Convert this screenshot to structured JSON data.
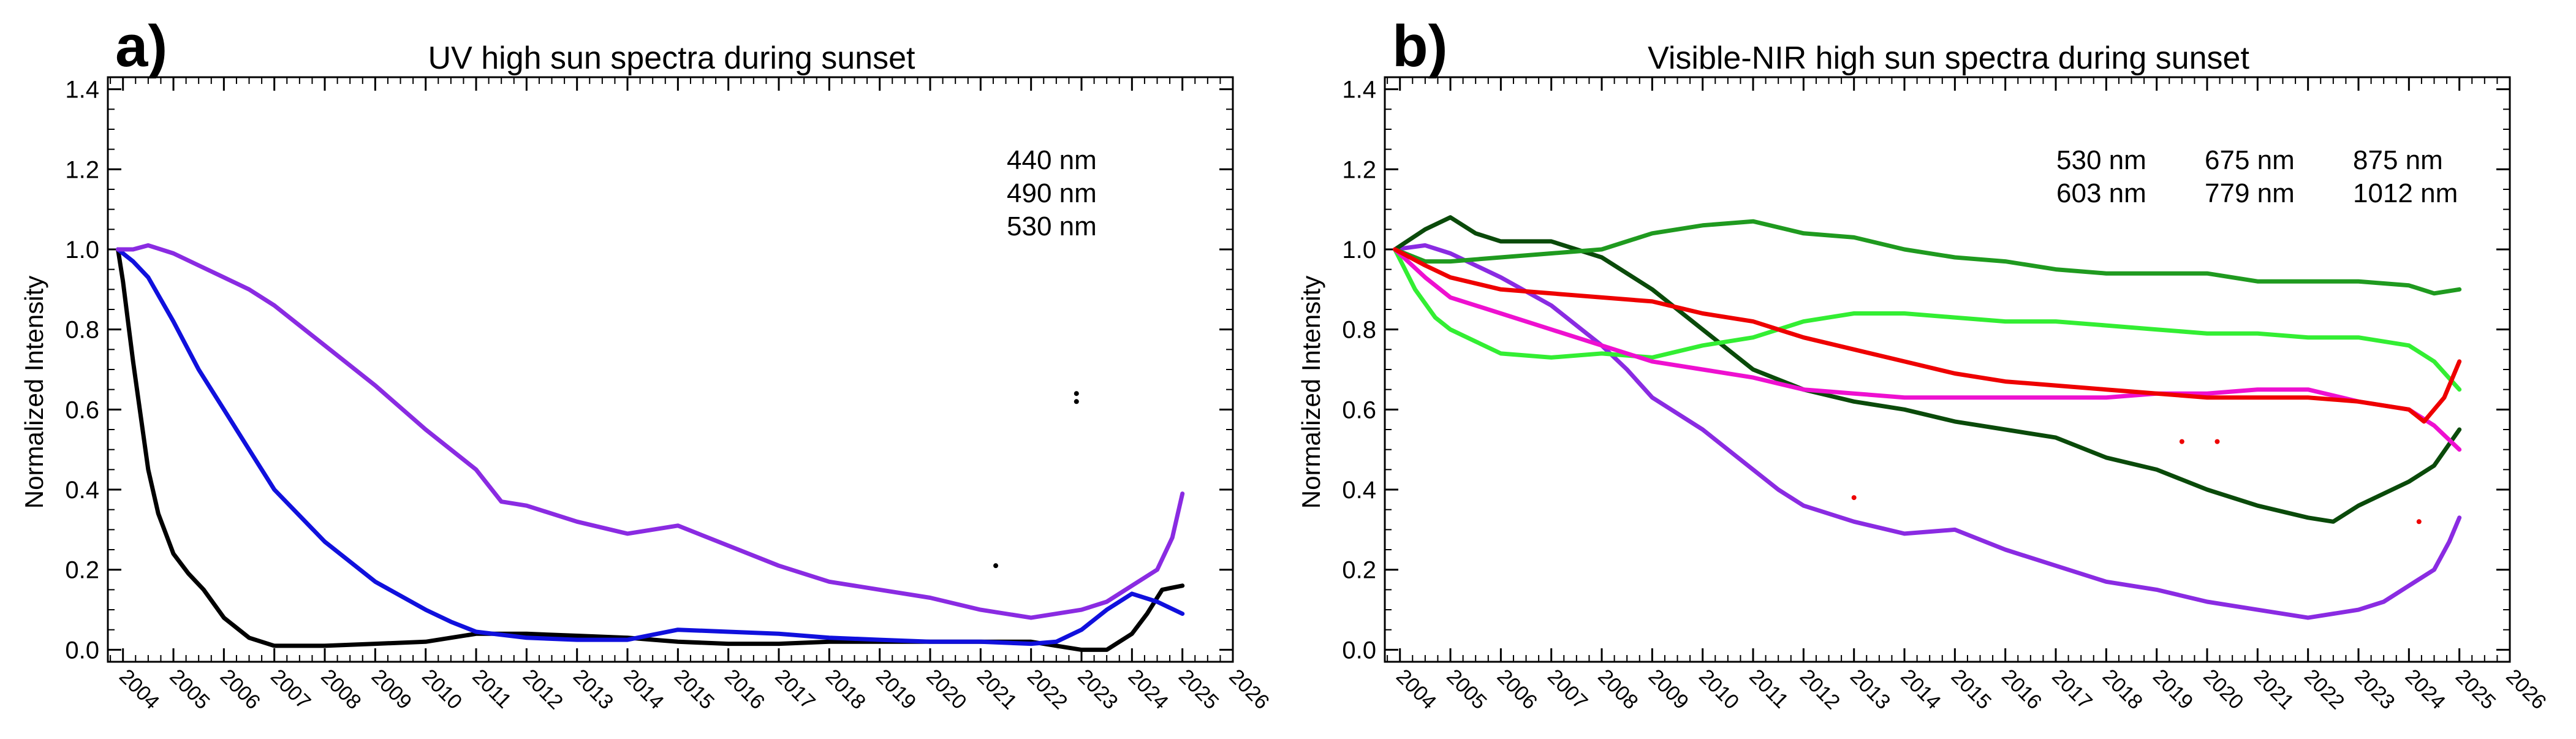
{
  "figure": {
    "background": "#ffffff"
  },
  "panels": [
    {
      "panel_label": "a)",
      "title": "UV high sun spectra during sunset",
      "ylabel": "Normalized Intensity",
      "yticks": [
        "0.0",
        "0.2",
        "0.4",
        "0.6",
        "0.8",
        "1.0",
        "1.2",
        "1.4"
      ],
      "xticks": [
        "2004",
        "2005",
        "2006",
        "2007",
        "2008",
        "2009",
        "2010",
        "2011",
        "2012",
        "2013",
        "2014",
        "2015",
        "2016",
        "2017",
        "2018",
        "2019",
        "2020",
        "2021",
        "2022",
        "2023",
        "2024",
        "2025",
        "2026"
      ],
      "legend": [
        {
          "label": "440 nm",
          "color": "#000000"
        },
        {
          "label": "490 nm",
          "color": "#1010dd"
        },
        {
          "label": "530 nm",
          "color": "#8a2be2"
        }
      ]
    },
    {
      "panel_label": "b)",
      "title": "Visible-NIR high sun spectra during sunset",
      "ylabel": "Normalized Intensity",
      "yticks": [
        "0.0",
        "0.2",
        "0.4",
        "0.6",
        "0.8",
        "1.0",
        "1.2",
        "1.4"
      ],
      "xticks": [
        "2004",
        "2005",
        "2006",
        "2007",
        "2008",
        "2009",
        "2010",
        "2011",
        "2012",
        "2013",
        "2014",
        "2015",
        "2016",
        "2017",
        "2018",
        "2019",
        "2020",
        "2021",
        "2022",
        "2023",
        "2024",
        "2025",
        "2026"
      ],
      "legend": [
        {
          "label": "530 nm",
          "color": "#8a2be2"
        },
        {
          "label": "603 nm",
          "color": "#0a4a0a"
        },
        {
          "label": "675 nm",
          "color": "#1f9a1f"
        },
        {
          "label": "779 nm",
          "color": "#33ee33"
        },
        {
          "label": "875 nm",
          "color": "#ee10d0"
        },
        {
          "label": "1012 nm",
          "color": "#ee0000"
        }
      ]
    }
  ],
  "chart_data": [
    {
      "type": "line",
      "title": "UV high sun spectra during sunset",
      "xlabel": "",
      "ylabel": "Normalized Intensity",
      "xlim": [
        2003.7,
        2026
      ],
      "ylim": [
        -0.03,
        1.43
      ],
      "series": [
        {
          "name": "440 nm",
          "color": "#000000",
          "x": [
            2003.9,
            2004.0,
            2004.1,
            2004.2,
            2004.3,
            2004.5,
            2004.7,
            2005.0,
            2005.3,
            2005.6,
            2006.0,
            2006.5,
            2007.0,
            2008.0,
            2009.0,
            2010.0,
            2011.0,
            2012.0,
            2013.0,
            2014.0,
            2015.0,
            2016.0,
            2017.0,
            2018.0,
            2019.0,
            2020.0,
            2021.0,
            2022.0,
            2023.0,
            2023.5,
            2024.0,
            2024.3,
            2024.6,
            2025.0
          ],
          "y": [
            1.0,
            0.92,
            0.82,
            0.72,
            0.63,
            0.45,
            0.34,
            0.24,
            0.19,
            0.15,
            0.08,
            0.03,
            0.01,
            0.01,
            0.015,
            0.02,
            0.04,
            0.04,
            0.035,
            0.03,
            0.02,
            0.015,
            0.015,
            0.02,
            0.02,
            0.02,
            0.02,
            0.02,
            0.0,
            0.0,
            0.04,
            0.09,
            0.15,
            0.16
          ]
        },
        {
          "name": "490 nm",
          "color": "#1010dd",
          "x": [
            2003.9,
            2004.2,
            2004.5,
            2005.0,
            2005.5,
            2006.0,
            2006.5,
            2007.0,
            2008.0,
            2009.0,
            2010.0,
            2010.5,
            2011.0,
            2012.0,
            2013.0,
            2014.0,
            2015.0,
            2016.0,
            2017.0,
            2018.0,
            2019.0,
            2020.0,
            2021.0,
            2022.0,
            2022.5,
            2023.0,
            2023.5,
            2024.0,
            2024.5,
            2025.0
          ],
          "y": [
            1.0,
            0.97,
            0.93,
            0.82,
            0.7,
            0.6,
            0.5,
            0.4,
            0.27,
            0.17,
            0.1,
            0.07,
            0.045,
            0.03,
            0.025,
            0.025,
            0.05,
            0.045,
            0.04,
            0.03,
            0.025,
            0.02,
            0.02,
            0.015,
            0.02,
            0.05,
            0.1,
            0.14,
            0.12,
            0.09
          ]
        },
        {
          "name": "530 nm",
          "color": "#8a2be2",
          "x": [
            2003.9,
            2004.2,
            2004.5,
            2005.0,
            2005.5,
            2006.0,
            2006.5,
            2007.0,
            2008.0,
            2009.0,
            2010.0,
            2011.0,
            2011.5,
            2012.0,
            2013.0,
            2014.0,
            2015.0,
            2016.0,
            2017.0,
            2018.0,
            2019.0,
            2020.0,
            2021.0,
            2022.0,
            2023.0,
            2023.5,
            2024.0,
            2024.5,
            2024.8,
            2025.0
          ],
          "y": [
            1.0,
            1.0,
            1.01,
            0.99,
            0.96,
            0.93,
            0.9,
            0.86,
            0.76,
            0.66,
            0.55,
            0.45,
            0.37,
            0.36,
            0.32,
            0.29,
            0.31,
            0.26,
            0.21,
            0.17,
            0.15,
            0.13,
            0.1,
            0.08,
            0.1,
            0.12,
            0.16,
            0.2,
            0.28,
            0.39
          ]
        }
      ],
      "outliers": [
        {
          "series": "440 nm",
          "x": 2022.9,
          "y": 0.64
        },
        {
          "series": "440 nm",
          "x": 2022.9,
          "y": 0.62
        },
        {
          "series": "440 nm",
          "x": 2021.3,
          "y": 0.21
        }
      ]
    },
    {
      "type": "line",
      "title": "Visible-NIR high sun spectra during sunset",
      "xlabel": "",
      "ylabel": "Normalized Intensity",
      "xlim": [
        2003.7,
        2026
      ],
      "ylim": [
        -0.03,
        1.43
      ],
      "series": [
        {
          "name": "530 nm",
          "color": "#8a2be2",
          "x": [
            2003.9,
            2004.5,
            2005.0,
            2005.5,
            2006.0,
            2007.0,
            2008.0,
            2008.5,
            2009.0,
            2010.0,
            2011.0,
            2011.5,
            2012.0,
            2013.0,
            2014.0,
            2015.0,
            2016.0,
            2017.0,
            2018.0,
            2019.0,
            2020.0,
            2021.0,
            2022.0,
            2023.0,
            2023.5,
            2024.0,
            2024.5,
            2024.8,
            2025.0
          ],
          "y": [
            1.0,
            1.01,
            0.99,
            0.96,
            0.93,
            0.86,
            0.76,
            0.7,
            0.63,
            0.55,
            0.45,
            0.4,
            0.36,
            0.32,
            0.29,
            0.3,
            0.25,
            0.21,
            0.17,
            0.15,
            0.12,
            0.1,
            0.08,
            0.1,
            0.12,
            0.16,
            0.2,
            0.27,
            0.33
          ]
        },
        {
          "name": "603 nm",
          "color": "#0a4a0a",
          "x": [
            2003.9,
            2004.5,
            2005.0,
            2005.5,
            2006.0,
            2007.0,
            2007.5,
            2008.0,
            2009.0,
            2010.0,
            2011.0,
            2012.0,
            2013.0,
            2014.0,
            2015.0,
            2016.0,
            2017.0,
            2018.0,
            2019.0,
            2020.0,
            2021.0,
            2022.0,
            2022.5,
            2023.0,
            2024.0,
            2024.5,
            2025.0
          ],
          "y": [
            1.0,
            1.05,
            1.08,
            1.04,
            1.02,
            1.02,
            1.0,
            0.98,
            0.9,
            0.8,
            0.7,
            0.65,
            0.62,
            0.6,
            0.57,
            0.55,
            0.53,
            0.48,
            0.45,
            0.4,
            0.36,
            0.33,
            0.32,
            0.36,
            0.42,
            0.46,
            0.55
          ]
        },
        {
          "name": "675 nm",
          "color": "#1f9a1f",
          "x": [
            2003.9,
            2004.5,
            2005.0,
            2006.0,
            2007.0,
            2008.0,
            2009.0,
            2010.0,
            2011.0,
            2012.0,
            2013.0,
            2014.0,
            2015.0,
            2016.0,
            2017.0,
            2018.0,
            2019.0,
            2020.0,
            2021.0,
            2022.0,
            2023.0,
            2024.0,
            2024.5,
            2025.0
          ],
          "y": [
            1.0,
            0.97,
            0.97,
            0.98,
            0.99,
            1.0,
            1.04,
            1.06,
            1.07,
            1.04,
            1.03,
            1.0,
            0.98,
            0.97,
            0.95,
            0.94,
            0.94,
            0.94,
            0.92,
            0.92,
            0.92,
            0.91,
            0.89,
            0.9
          ]
        },
        {
          "name": "779 nm",
          "color": "#33ee33",
          "x": [
            2003.9,
            2004.3,
            2004.7,
            2005.0,
            2005.5,
            2006.0,
            2007.0,
            2008.0,
            2009.0,
            2010.0,
            2011.0,
            2012.0,
            2013.0,
            2014.0,
            2015.0,
            2016.0,
            2017.0,
            2018.0,
            2019.0,
            2020.0,
            2021.0,
            2022.0,
            2023.0,
            2024.0,
            2024.5,
            2025.0
          ],
          "y": [
            1.0,
            0.9,
            0.83,
            0.8,
            0.77,
            0.74,
            0.73,
            0.74,
            0.73,
            0.76,
            0.78,
            0.82,
            0.84,
            0.84,
            0.83,
            0.82,
            0.82,
            0.81,
            0.8,
            0.79,
            0.79,
            0.78,
            0.78,
            0.76,
            0.72,
            0.65
          ]
        },
        {
          "name": "875 nm",
          "color": "#ee10d0",
          "x": [
            2003.9,
            2004.5,
            2005.0,
            2006.0,
            2007.0,
            2008.0,
            2009.0,
            2010.0,
            2011.0,
            2012.0,
            2013.0,
            2014.0,
            2015.0,
            2016.0,
            2017.0,
            2018.0,
            2019.0,
            2020.0,
            2021.0,
            2022.0,
            2023.0,
            2024.0,
            2024.5,
            2025.0
          ],
          "y": [
            1.0,
            0.93,
            0.88,
            0.84,
            0.8,
            0.76,
            0.72,
            0.7,
            0.68,
            0.65,
            0.64,
            0.63,
            0.63,
            0.63,
            0.63,
            0.63,
            0.64,
            0.64,
            0.65,
            0.65,
            0.62,
            0.6,
            0.56,
            0.5
          ]
        },
        {
          "name": "1012 nm",
          "color": "#ee0000",
          "x": [
            2003.9,
            2004.5,
            2005.0,
            2006.0,
            2007.0,
            2008.0,
            2009.0,
            2010.0,
            2011.0,
            2012.0,
            2013.0,
            2014.0,
            2015.0,
            2016.0,
            2017.0,
            2018.0,
            2019.0,
            2020.0,
            2021.0,
            2022.0,
            2023.0,
            2024.0,
            2024.3,
            2024.7,
            2025.0
          ],
          "y": [
            1.0,
            0.96,
            0.93,
            0.9,
            0.89,
            0.88,
            0.87,
            0.84,
            0.82,
            0.78,
            0.75,
            0.72,
            0.69,
            0.67,
            0.66,
            0.65,
            0.64,
            0.63,
            0.63,
            0.63,
            0.62,
            0.6,
            0.57,
            0.63,
            0.72
          ]
        }
      ],
      "outliers": [
        {
          "series": "1012 nm",
          "x": 2013.0,
          "y": 0.38
        },
        {
          "series": "1012 nm",
          "x": 2019.5,
          "y": 0.52
        },
        {
          "series": "1012 nm",
          "x": 2020.2,
          "y": 0.52
        },
        {
          "series": "1012 nm",
          "x": 2024.2,
          "y": 0.32
        }
      ]
    }
  ]
}
